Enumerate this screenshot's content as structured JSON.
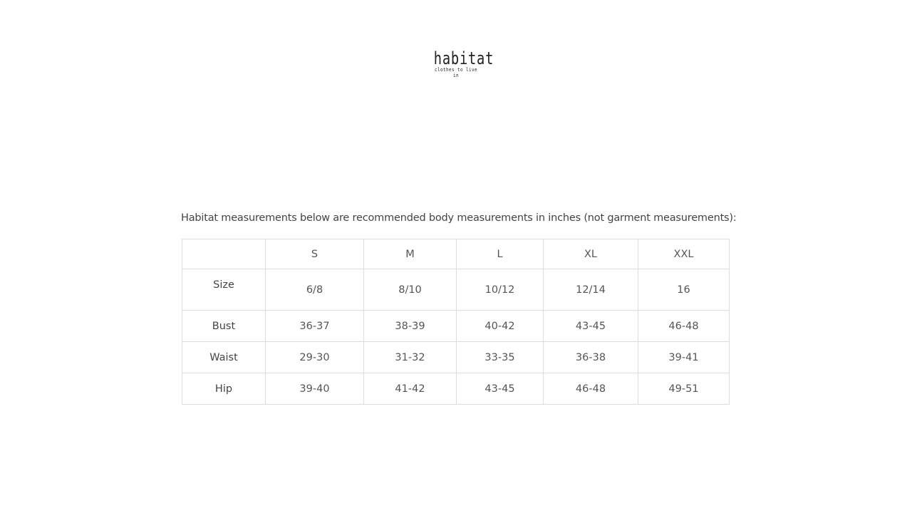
{
  "logo": {
    "name": "habitat",
    "tagline": "clothes to live in"
  },
  "intro": "Habitat measurements below are recommended body measurements in inches (not garment measurements):",
  "table": {
    "headers": [
      "",
      "S",
      "M",
      "L",
      "XL",
      "XXL"
    ],
    "rows": [
      {
        "label": "Size",
        "values": [
          "6/8",
          "8/10",
          "10/12",
          "12/14",
          "16"
        ]
      },
      {
        "label": "Bust",
        "values": [
          "36-37",
          "38-39",
          "40-42",
          "43-45",
          "46-48"
        ]
      },
      {
        "label": "Waist",
        "values": [
          "29-30",
          "31-32",
          "33-35",
          "36-38",
          "39-41"
        ]
      },
      {
        "label": "Hip",
        "values": [
          "39-40",
          "41-42",
          "43-45",
          "46-48",
          "49-51"
        ]
      }
    ]
  }
}
